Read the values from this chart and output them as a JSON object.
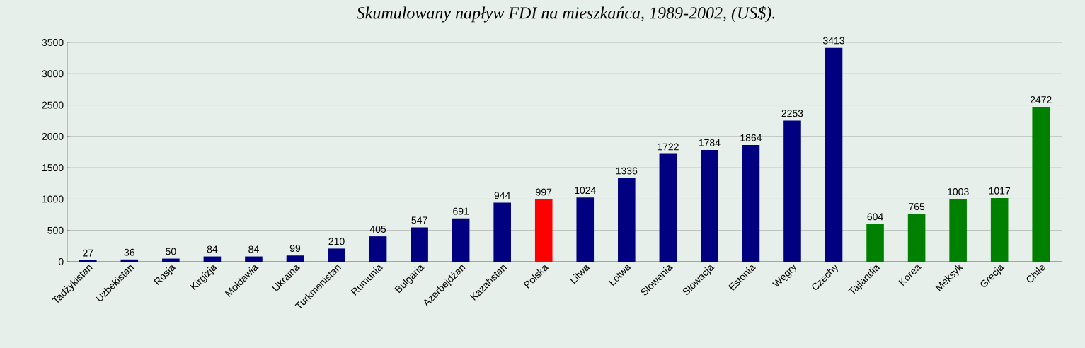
{
  "chart_data": {
    "type": "bar",
    "title": "Skumulowany napływ FDI na mieszkańca, 1989-2002, (US$).",
    "categories": [
      "Tadżykistan",
      "Uzbekistan",
      "Rosja",
      "Kirgizja",
      "Mołdawia",
      "Ukraina",
      "Turkmenistan",
      "Rumunia",
      "Bułgaria",
      "Azerbejdżan",
      "Kazahstan",
      "Polska",
      "Litwa",
      "Łotwa",
      "Słowenia",
      "Słowacja",
      "Estonia",
      "Węgry",
      "Czechy",
      "Tajlandia",
      "Korea",
      "Meksyk",
      "Grecja",
      "Chile"
    ],
    "values": [
      27,
      36,
      50,
      84,
      84,
      99,
      210,
      405,
      547,
      691,
      944,
      997,
      1024,
      1336,
      1722,
      1784,
      1864,
      2253,
      3413,
      604,
      765,
      1003,
      1017,
      2472
    ],
    "colors": [
      "#000080",
      "#000080",
      "#000080",
      "#000080",
      "#000080",
      "#000080",
      "#000080",
      "#000080",
      "#000080",
      "#000080",
      "#000080",
      "#FF0000",
      "#000080",
      "#000080",
      "#000080",
      "#000080",
      "#000080",
      "#000080",
      "#000080",
      "#008000",
      "#008000",
      "#008000",
      "#008000",
      "#008000"
    ],
    "ylim": [
      0,
      3500
    ],
    "yticks": [
      0,
      500,
      1000,
      1500,
      2000,
      2500,
      3000,
      3500
    ],
    "grid": "y",
    "data_labels": true
  }
}
